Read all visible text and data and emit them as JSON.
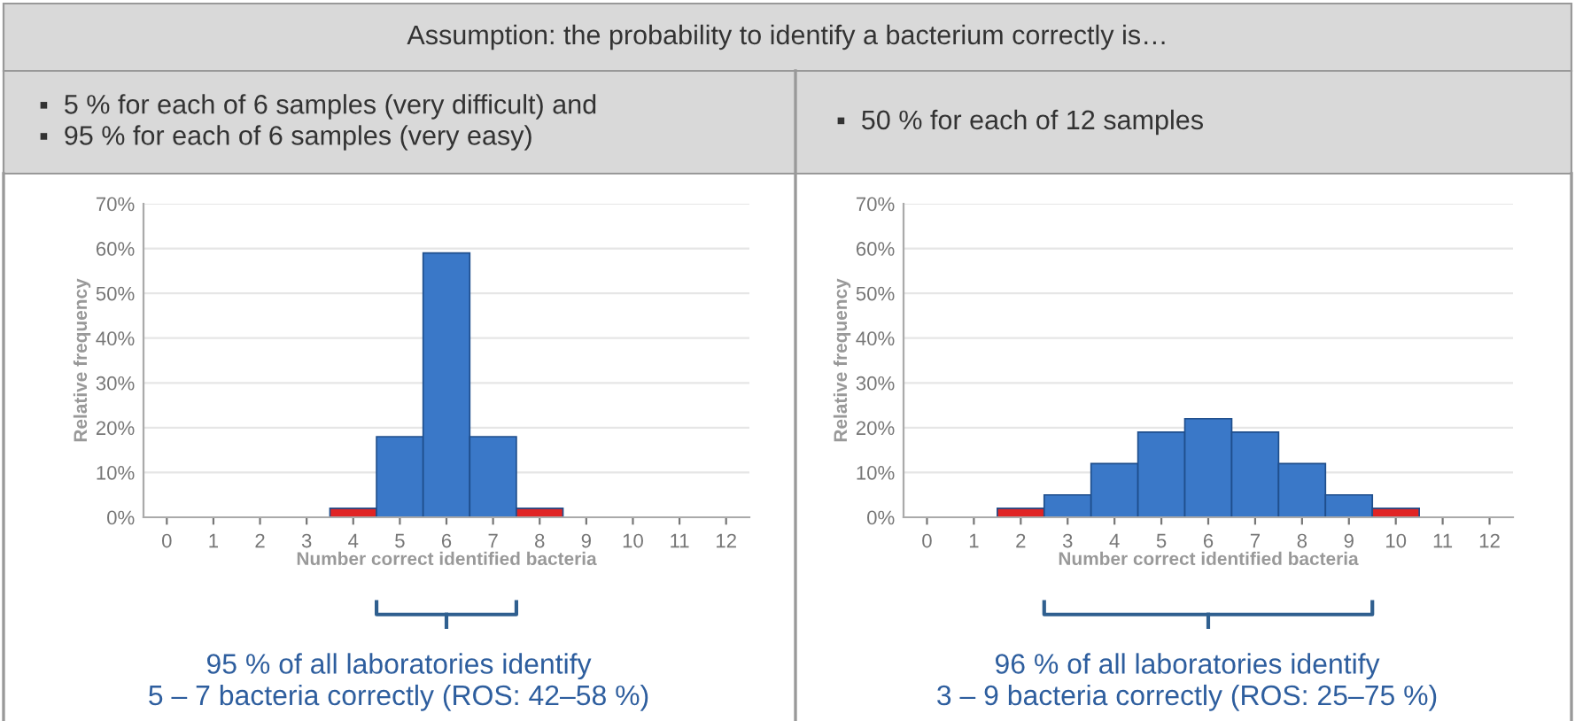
{
  "chart_data": [
    {
      "type": "bar",
      "title": "Assumption: the probability to identify a bacterium correctly is…",
      "subtitle": "▪  5 % for each of 6 samples (very difficult) and\n▪  95 % for each of 6 samples (very easy)",
      "xlabel": "Number correct identified bacteria",
      "ylabel": "Relative frequency",
      "categories": [
        "0",
        "1",
        "2",
        "3",
        "4",
        "5",
        "6",
        "7",
        "8",
        "9",
        "10",
        "11",
        "12"
      ],
      "values": [
        0,
        0,
        0,
        0,
        2,
        18,
        59,
        18,
        2,
        0,
        0,
        0,
        0
      ],
      "colors": [
        "#3a78c8",
        "#3a78c8",
        "#3a78c8",
        "#3a78c8",
        "#e02424",
        "#3a78c8",
        "#3a78c8",
        "#3a78c8",
        "#e02424",
        "#3a78c8",
        "#3a78c8",
        "#3a78c8",
        "#3a78c8"
      ],
      "ylim": [
        0,
        70
      ],
      "yticks": [
        {
          "value": 0,
          "label": "0%"
        },
        {
          "value": 10,
          "label": "10%"
        },
        {
          "value": 20,
          "label": "20%"
        },
        {
          "value": 30,
          "label": "30%"
        },
        {
          "value": 40,
          "label": "40%"
        },
        {
          "value": 50,
          "label": "50%"
        },
        {
          "value": 60,
          "label": "60%"
        },
        {
          "value": 70,
          "label": "70%"
        }
      ],
      "grid": "y",
      "annotations": [
        "95 % of all laboratories identify\n5 – 7 bacteria correctly (ROS: 42–58 %)"
      ]
    },
    {
      "type": "bar",
      "subtitle": "▪  50 % for each of 12 samples",
      "xlabel": "Number correct identified bacteria",
      "ylabel": "Relative frequency",
      "categories": [
        "0",
        "1",
        "2",
        "3",
        "4",
        "5",
        "6",
        "7",
        "8",
        "9",
        "10",
        "11",
        "12"
      ],
      "values": [
        0,
        0,
        2,
        5,
        12,
        19,
        22,
        19,
        12,
        5,
        2,
        0,
        0
      ],
      "colors": [
        "#3a78c8",
        "#3a78c8",
        "#e02424",
        "#3a78c8",
        "#3a78c8",
        "#3a78c8",
        "#3a78c8",
        "#3a78c8",
        "#3a78c8",
        "#3a78c8",
        "#e02424",
        "#3a78c8",
        "#3a78c8"
      ],
      "ylim": [
        0,
        70
      ],
      "yticks": [
        {
          "value": 0,
          "label": "0%"
        },
        {
          "value": 10,
          "label": "10%"
        },
        {
          "value": 20,
          "label": "20%"
        },
        {
          "value": 30,
          "label": "30%"
        },
        {
          "value": 40,
          "label": "40%"
        },
        {
          "value": 50,
          "label": "50%"
        },
        {
          "value": 60,
          "label": "60%"
        },
        {
          "value": 70,
          "label": "70%"
        }
      ],
      "grid": "y",
      "annotations": [
        "96 % of all laboratories identify\n3 – 9 bacteria correctly (ROS: 25–75 %)"
      ]
    }
  ]
}
